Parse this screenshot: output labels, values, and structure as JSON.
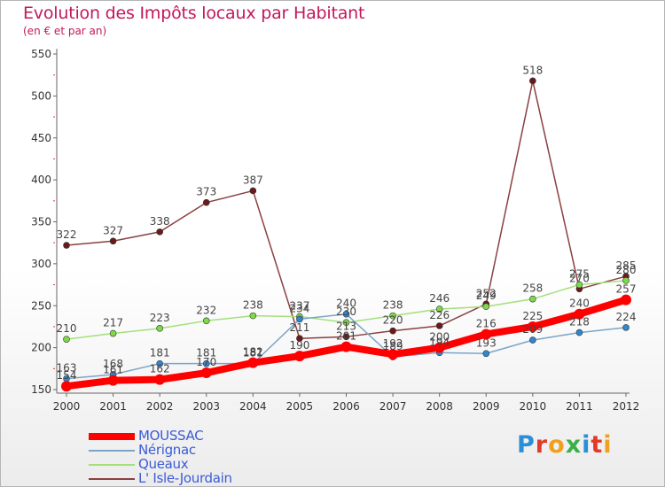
{
  "title": "Evolution des Impôts locaux par Habitant",
  "subtitle": "(en € et par an)",
  "brand": {
    "text": "Proxiti",
    "letter_colors": [
      "#2a8fd6",
      "#e23a2a",
      "#f0a020",
      "#3ab04a",
      "#2a8fd6",
      "#e23a2a",
      "#f0a020"
    ]
  },
  "chart_data": {
    "type": "line",
    "title": "Evolution des Impôts locaux par Habitant",
    "ylabel": "(en € et par an)",
    "xlabel": "",
    "ylim": [
      150,
      550
    ],
    "yticks": [
      150,
      200,
      250,
      300,
      350,
      400,
      450,
      500,
      550
    ],
    "x": [
      2000,
      2001,
      2002,
      2003,
      2004,
      2005,
      2006,
      2007,
      2008,
      2009,
      2010,
      2011,
      2012
    ],
    "grid": false,
    "legend_position": "bottom-left",
    "series": [
      {
        "name": "MOUSSAC",
        "color": "#ff0000",
        "values": [
          154,
          161,
          162,
          170,
          182,
          190,
          201,
          192,
          200,
          216,
          225,
          240,
          257
        ]
      },
      {
        "name": "Nérignac",
        "color": "#7aa5c9",
        "marker": "#2f86d2",
        "values": [
          163,
          168,
          181,
          181,
          181,
          234,
          240,
          189,
          194,
          193,
          209,
          218,
          224
        ]
      },
      {
        "name": "Queaux",
        "color": "#a3e07a",
        "marker": "#7fd84a",
        "values": [
          210,
          217,
          223,
          232,
          238,
          237,
          230,
          238,
          246,
          249,
          258,
          275,
          280
        ]
      },
      {
        "name": "L' Isle-Jourdain",
        "color": "#8a4040",
        "marker": "#6a1a1a",
        "values": [
          322,
          327,
          338,
          373,
          387,
          211,
          213,
          220,
          226,
          252,
          518,
          270,
          285
        ]
      }
    ]
  }
}
